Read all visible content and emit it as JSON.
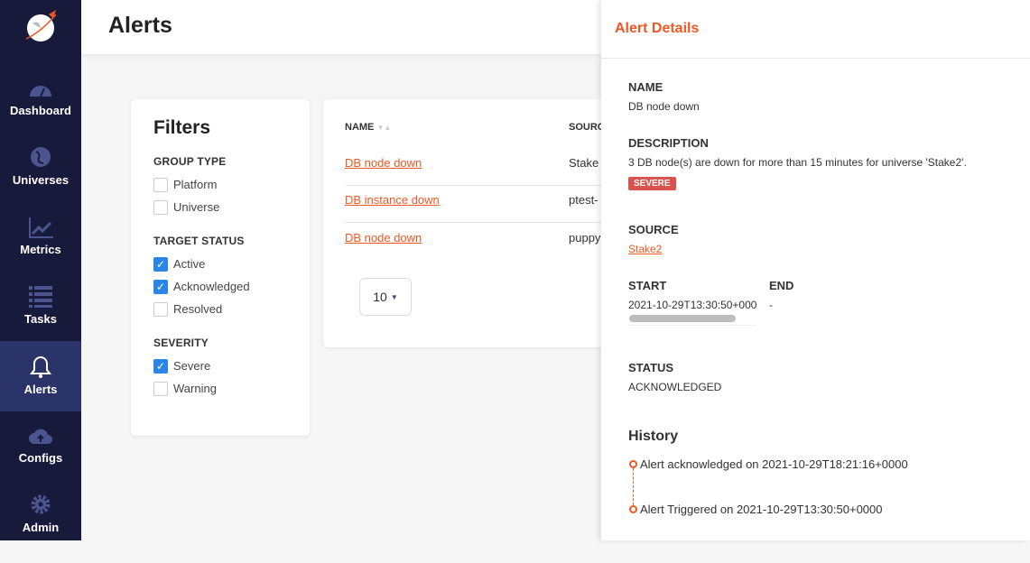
{
  "sidebar": {
    "items": [
      {
        "label": "Dashboard",
        "icon": "dashboard-icon"
      },
      {
        "label": "Universes",
        "icon": "globe-icon"
      },
      {
        "label": "Metrics",
        "icon": "chart-line-icon"
      },
      {
        "label": "Tasks",
        "icon": "list-icon"
      },
      {
        "label": "Alerts",
        "icon": "bell-icon",
        "active": true
      },
      {
        "label": "Configs",
        "icon": "cloud-upload-icon"
      },
      {
        "label": "Admin",
        "icon": "gear-icon"
      }
    ]
  },
  "header": {
    "title": "Alerts"
  },
  "filters": {
    "title": "Filters",
    "group_type": {
      "label": "GROUP TYPE",
      "options": [
        {
          "label": "Platform",
          "checked": false
        },
        {
          "label": "Universe",
          "checked": false
        }
      ]
    },
    "target_status": {
      "label": "TARGET STATUS",
      "options": [
        {
          "label": "Active",
          "checked": true
        },
        {
          "label": "Acknowledged",
          "checked": true
        },
        {
          "label": "Resolved",
          "checked": false
        }
      ]
    },
    "severity": {
      "label": "SEVERITY",
      "options": [
        {
          "label": "Severe",
          "checked": true
        },
        {
          "label": "Warning",
          "checked": false
        }
      ]
    }
  },
  "table": {
    "columns": [
      "NAME",
      "SOURC"
    ],
    "rows": [
      {
        "name": "DB node down",
        "source": "Stake"
      },
      {
        "name": "DB instance down",
        "source": "ptest-"
      },
      {
        "name": "DB node down",
        "source": "puppy"
      }
    ],
    "page_size": "10"
  },
  "details": {
    "title": "Alert Details",
    "name_label": "NAME",
    "name": "DB node down",
    "description_label": "DESCRIPTION",
    "description": "3 DB node(s) are down for more than 15 minutes for universe 'Stake2'.",
    "severity": "SEVERE",
    "severity_color": "#d9534f",
    "source_label": "SOURCE",
    "source": "Stake2",
    "start_label": "START",
    "start": "2021-10-29T13:30:50+0000",
    "end_label": "END",
    "end": "-",
    "status_label": "STATUS",
    "status": "ACKNOWLEDGED",
    "history_title": "History",
    "history": [
      "Alert acknowledged on 2021-10-29T18:21:16+0000",
      "Alert Triggered on 2021-10-29T13:30:50+0000"
    ]
  },
  "colors": {
    "accent": "#ef5824",
    "sidebar": "#171a3b",
    "sidebar_active": "#2a3468",
    "checkbox": "#2b85e4"
  }
}
